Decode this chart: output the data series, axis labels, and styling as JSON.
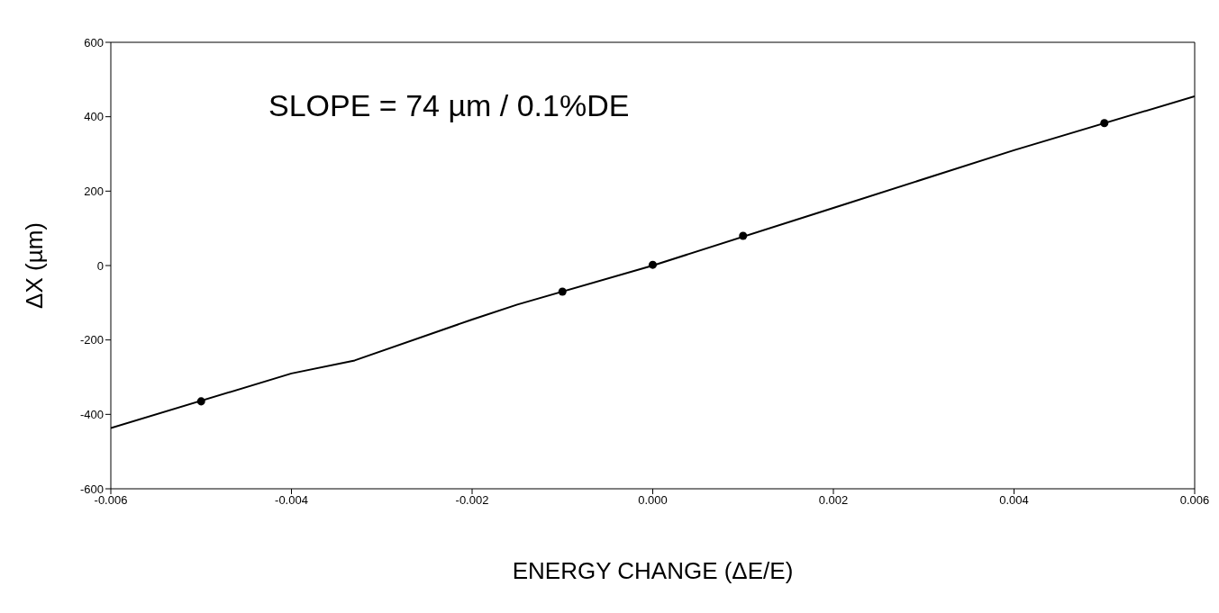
{
  "chart_data": {
    "type": "scatter",
    "xlabel": "ENERGY CHANGE (ΔE/E)",
    "ylabel": "ΔX (µm)",
    "annotations": [
      "SLOPE = 74 µm / 0.1%DE"
    ],
    "xlim": [
      -0.006,
      0.006
    ],
    "xticks": [
      {
        "value": -0.006,
        "label": "-0.006"
      },
      {
        "value": -0.004,
        "label": "-0.004"
      },
      {
        "value": -0.002,
        "label": "-0.002"
      },
      {
        "value": 0,
        "label": "0.000"
      },
      {
        "value": 0.002,
        "label": "0.002"
      },
      {
        "value": 0.004,
        "label": "0.004"
      },
      {
        "value": 0.006,
        "label": "0.006"
      }
    ],
    "ylim": [
      -600,
      600
    ],
    "yticks": [
      -600,
      -400,
      -200,
      0,
      200,
      400,
      600
    ],
    "grid": false,
    "legend": false,
    "marker": "circle",
    "series": [
      {
        "color": "#000000",
        "x": [
          -0.005,
          -0.001,
          0,
          0.001,
          0.005
        ],
        "values": [
          -365,
          -70,
          2,
          80,
          383
        ]
      },
      {
        "type": "line",
        "color": "#000000",
        "line_style": "solid",
        "marker": "none",
        "x": [
          -0.006,
          -0.004,
          -0.0033,
          -0.002,
          -0.0015,
          0,
          0.002,
          0.004,
          0.006
        ],
        "values": [
          -437,
          -290,
          -255,
          -145,
          -105,
          0,
          155,
          310,
          455
        ]
      }
    ]
  }
}
